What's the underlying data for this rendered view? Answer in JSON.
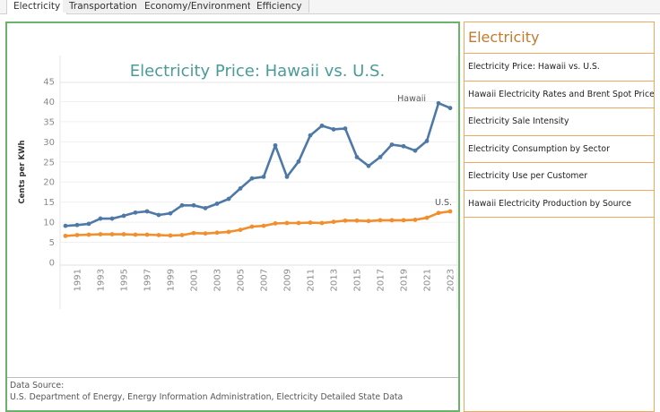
{
  "tabs": [
    {
      "label": "Electricity",
      "active": true
    },
    {
      "label": "Transportation",
      "active": false
    },
    {
      "label": "Economy/Environment",
      "active": false
    },
    {
      "label": "Efficiency",
      "active": false
    }
  ],
  "sidebar": {
    "title": "Electricity",
    "items": [
      {
        "label": "Electricity Price: Hawaii vs. U.S."
      },
      {
        "label": "Hawaii Electricity Rates and Brent Spot Price"
      },
      {
        "label": "Electricity Sale Intensity"
      },
      {
        "label": "Electricity Consumption by Sector"
      },
      {
        "label": "Electricity Use per Customer"
      },
      {
        "label": "Hawaii Electricity Production by Source"
      }
    ]
  },
  "source": {
    "heading": "Data Source:",
    "text": "U.S. Department of Energy, Energy Information Administration, Electricity Detailed State Data"
  },
  "colors": {
    "hawaii": "#4e79a7",
    "us": "#f28e2b",
    "title": "#4a9c98",
    "main_border": "#6bb36b",
    "sidebar_border": "#f0a85a"
  },
  "chart_data": {
    "type": "line",
    "title": "Electricity Price: Hawaii vs. U.S.",
    "xlabel": "",
    "ylabel": "Cents per KWh",
    "ylim": [
      0,
      45
    ],
    "yticks": [
      0,
      5,
      10,
      15,
      20,
      25,
      30,
      35,
      40,
      45
    ],
    "xticks": [
      "1991",
      "1993",
      "1995",
      "1997",
      "1999",
      "2001",
      "2003",
      "2005",
      "2007",
      "2009",
      "2011",
      "2013",
      "2015",
      "2017",
      "2019",
      "2021",
      "2023"
    ],
    "grid": true,
    "x": [
      1990,
      1991,
      1992,
      1993,
      1994,
      1995,
      1996,
      1997,
      1998,
      1999,
      2000,
      2001,
      2002,
      2003,
      2004,
      2005,
      2006,
      2007,
      2008,
      2009,
      2010,
      2011,
      2012,
      2013,
      2014,
      2015,
      2016,
      2017,
      2018,
      2019,
      2020,
      2021,
      2022,
      2023
    ],
    "series": [
      {
        "name": "Hawaii",
        "label": "Hawaii",
        "values": [
          9.1,
          9.3,
          9.6,
          10.9,
          10.9,
          11.6,
          12.4,
          12.7,
          11.8,
          12.2,
          14.2,
          14.2,
          13.5,
          14.6,
          15.8,
          18.4,
          20.9,
          21.3,
          29.1,
          21.3,
          25.1,
          31.6,
          34.0,
          33.1,
          33.3,
          26.2,
          24.0,
          26.2,
          29.3,
          28.9,
          27.8,
          30.2,
          39.6,
          38.4
        ]
      },
      {
        "name": "U.S.",
        "label": "U.S.",
        "values": [
          6.6,
          6.8,
          6.9,
          7.0,
          7.0,
          7.0,
          6.9,
          6.9,
          6.8,
          6.7,
          6.8,
          7.3,
          7.2,
          7.4,
          7.6,
          8.1,
          8.9,
          9.1,
          9.7,
          9.8,
          9.8,
          9.9,
          9.8,
          10.1,
          10.4,
          10.4,
          10.3,
          10.5,
          10.5,
          10.5,
          10.6,
          11.1,
          12.3,
          12.7
        ]
      }
    ]
  }
}
